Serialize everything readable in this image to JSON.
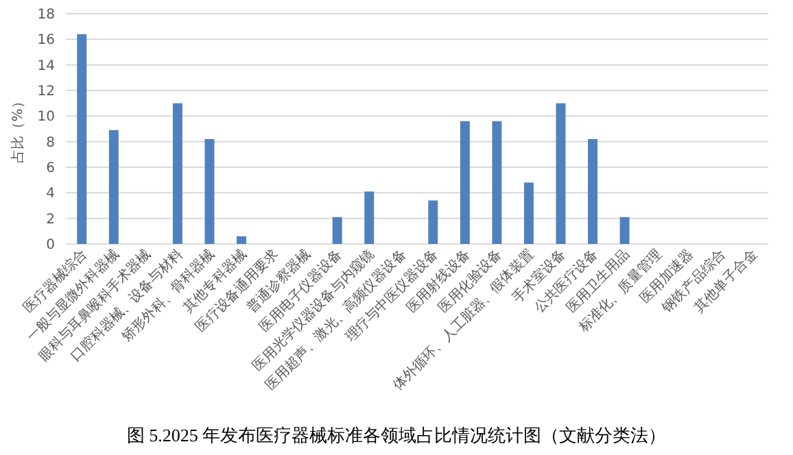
{
  "chart_data": {
    "type": "bar",
    "ylabel": "占比（%）",
    "categories": [
      "医疗器械综合",
      "一般与显微外科器械",
      "眼科与耳鼻喉科手术器械",
      "口腔科器械、设备与材料",
      "矫形外科、骨科器械",
      "其他专科器械",
      "医疗设备通用要求",
      "普通诊察器械",
      "医用电子仪器设备",
      "医用光学仪器设备与内窥镜",
      "医用超声、激光、高频仪器设备",
      "理疗与中医仪器设备",
      "医用射线设备",
      "医用化验设备",
      "体外循环、人工脏器、假体装置",
      "手术室设备",
      "公共医疗设备",
      "医用卫生用品",
      "标准化、质量管理",
      "医用加速器",
      "钢铁产品综合",
      "其他单子合金"
    ],
    "values": [
      16.4,
      8.9,
      0,
      11.0,
      8.2,
      0.6,
      0,
      0,
      2.1,
      4.1,
      0,
      3.4,
      9.6,
      9.6,
      4.8,
      11.0,
      8.2,
      2.1,
      0,
      0,
      0,
      0
    ],
    "color": "#4f81bd",
    "ylim": [
      0,
      18
    ],
    "yticks": [
      0,
      2,
      4,
      6,
      8,
      10,
      12,
      14,
      16,
      18
    ],
    "grid": "y",
    "annotations": [
      "图 5.2025 年发布医疗器械标准各领域占比情况统计图（文献分类法）"
    ]
  }
}
